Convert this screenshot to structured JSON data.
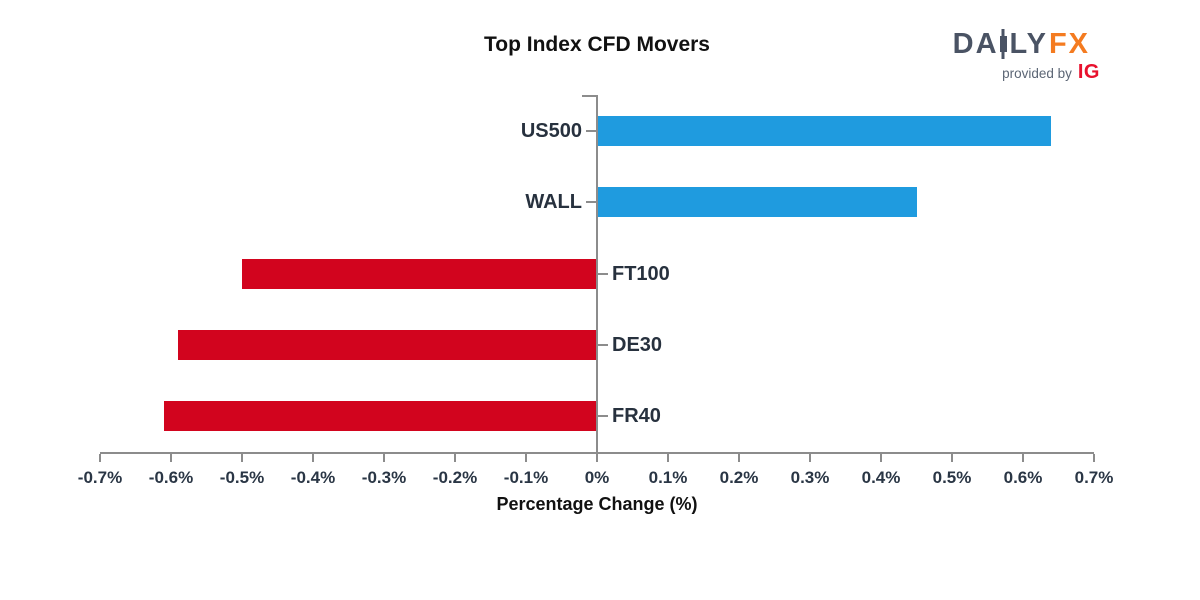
{
  "page": {
    "background": "#ffffff"
  },
  "header": {
    "logo": {
      "part1": "DA",
      "part2": "LY",
      "fx": "FX",
      "provided_by": "provided by",
      "ig": "IG",
      "colors": {
        "daily": "#4A5364",
        "fx": "#F47B20",
        "provided_by": "#5C6675",
        "ig": "#E8112D"
      }
    }
  },
  "chart_data": {
    "type": "bar",
    "orientation": "horizontal",
    "title": "Top Index CFD Movers",
    "xlabel": "Percentage Change (%)",
    "categories": [
      "US500",
      "WALL",
      "FT100",
      "DE30",
      "FR40"
    ],
    "values": [
      0.64,
      0.45,
      -0.5,
      -0.59,
      -0.61
    ],
    "xlim": [
      -0.7,
      0.7
    ],
    "x_tick_values": [
      -0.7,
      -0.6,
      -0.5,
      -0.4,
      -0.3,
      -0.2,
      -0.1,
      0,
      0.1,
      0.2,
      0.3,
      0.4,
      0.5,
      0.6,
      0.7
    ],
    "x_tick_labels": [
      "-0.7%",
      "-0.6%",
      "-0.5%",
      "-0.4%",
      "-0.3%",
      "-0.2%",
      "-0.1%",
      "0%",
      "0.1%",
      "0.2%",
      "0.3%",
      "0.4%",
      "0.5%",
      "0.6%",
      "0.7%"
    ],
    "grid": false,
    "legend": "none",
    "colors": {
      "positive_bar": "#1F9BDF",
      "negative_bar": "#D2041E",
      "axis": "#8C8C8C",
      "tick_label": "#2A3645",
      "category_label": "#27313E"
    }
  }
}
